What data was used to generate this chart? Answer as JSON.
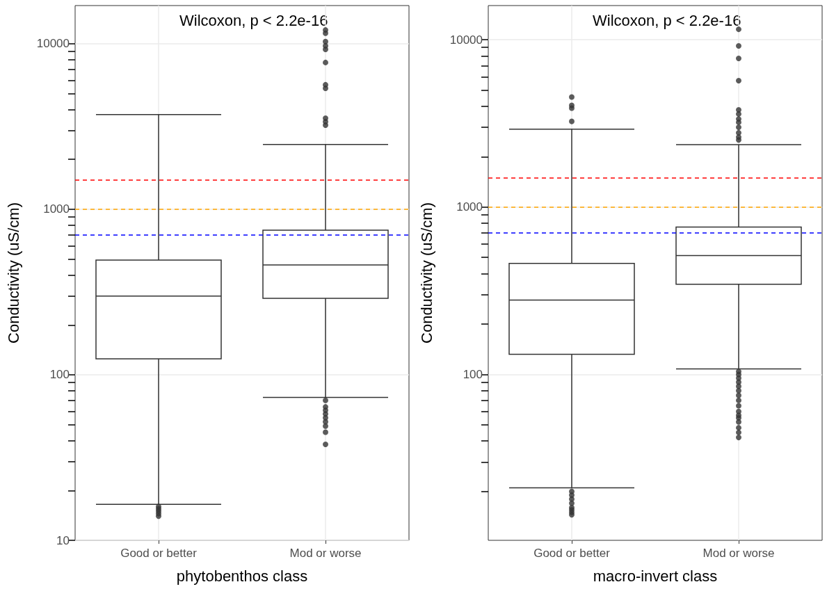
{
  "chart_data": [
    {
      "type": "box",
      "categories": [
        "Good or better",
        "Mod or worse"
      ],
      "xlabel": "phytobenthos class",
      "ylabel": "Conductivity (uS/cm)",
      "log": "y",
      "ylim": [
        10,
        17000
      ],
      "yticks": [
        10,
        {
          "value": 20,
          "label": null
        },
        {
          "value": 30,
          "label": null
        },
        {
          "value": 40,
          "label": null
        },
        {
          "value": 50,
          "label": null
        },
        {
          "value": 60,
          "label": null
        },
        {
          "value": 70,
          "label": null
        },
        {
          "value": 80,
          "label": null
        },
        {
          "value": 90,
          "label": null
        },
        100,
        {
          "value": 200,
          "label": null
        },
        {
          "value": 300,
          "label": null
        },
        {
          "value": 400,
          "label": null
        },
        {
          "value": 500,
          "label": null
        },
        {
          "value": 600,
          "label": null
        },
        {
          "value": 700,
          "label": null
        },
        {
          "value": 800,
          "label": null
        },
        {
          "value": 900,
          "label": null
        },
        1000,
        {
          "value": 2000,
          "label": null
        },
        {
          "value": 3000,
          "label": null
        },
        {
          "value": 4000,
          "label": null
        },
        {
          "value": 5000,
          "label": null
        },
        {
          "value": 6000,
          "label": null
        },
        {
          "value": 7000,
          "label": null
        },
        {
          "value": 8000,
          "label": null
        },
        {
          "value": 9000,
          "label": null
        },
        10000
      ],
      "grid": true,
      "boxes": [
        {
          "low": 16.5,
          "q1": 125,
          "median": 299,
          "q3": 493,
          "high": 3730,
          "outliers": [
            16,
            15.5,
            15,
            14.5,
            14
          ]
        },
        {
          "low": 73,
          "q1": 290,
          "median": 461,
          "q3": 748,
          "high": 2460,
          "outliers": [
            70,
            64,
            61,
            58,
            55,
            52,
            49,
            45,
            38,
            3220,
            3380,
            3550,
            5380,
            5650,
            7700,
            9250,
            9710,
            10300,
            11570,
            12100
          ]
        }
      ],
      "ref_lines": [
        {
          "axis": "y",
          "value": 1500,
          "color": "#ff0000",
          "line_style": "dashed"
        },
        {
          "axis": "y",
          "value": 1000,
          "color": "#ffa500",
          "line_style": "dashed"
        },
        {
          "axis": "y",
          "value": 700,
          "color": "#0000ff",
          "line_style": "dashed"
        }
      ],
      "annotations": [
        "Wilcoxon, p < 2.2e-16"
      ]
    },
    {
      "type": "box",
      "categories": [
        "Good or better",
        "Mod or worse"
      ],
      "xlabel": "macro-invert class",
      "ylabel": "Conductivity (uS/cm)",
      "log": "y",
      "ylim": [
        10.2,
        16000
      ],
      "yticks": [
        {
          "value": 20,
          "label": null
        },
        {
          "value": 30,
          "label": null
        },
        {
          "value": 40,
          "label": null
        },
        {
          "value": 50,
          "label": null
        },
        {
          "value": 60,
          "label": null
        },
        {
          "value": 70,
          "label": null
        },
        {
          "value": 80,
          "label": null
        },
        {
          "value": 90,
          "label": null
        },
        100,
        {
          "value": 200,
          "label": null
        },
        {
          "value": 300,
          "label": null
        },
        {
          "value": 400,
          "label": null
        },
        {
          "value": 500,
          "label": null
        },
        {
          "value": 600,
          "label": null
        },
        {
          "value": 700,
          "label": null
        },
        {
          "value": 800,
          "label": null
        },
        {
          "value": 900,
          "label": null
        },
        1000,
        {
          "value": 2000,
          "label": null
        },
        {
          "value": 3000,
          "label": null
        },
        {
          "value": 4000,
          "label": null
        },
        {
          "value": 5000,
          "label": null
        },
        {
          "value": 6000,
          "label": null
        },
        {
          "value": 7000,
          "label": null
        },
        {
          "value": 8000,
          "label": null
        },
        {
          "value": 9000,
          "label": null
        },
        10000
      ],
      "grid": true,
      "boxes": [
        {
          "low": 21,
          "q1": 132,
          "median": 278,
          "q3": 461,
          "high": 2920,
          "outliers": [
            20,
            19,
            18,
            17,
            16,
            15.5,
            15,
            14.5,
            3250,
            3900,
            4050,
            4550
          ]
        },
        {
          "low": 108,
          "q1": 346,
          "median": 513,
          "q3": 759,
          "high": 2360,
          "outliers": [
            104,
            100,
            95,
            90,
            85,
            80,
            75,
            70,
            65,
            60,
            57,
            55,
            52,
            48,
            45,
            42,
            2520,
            2620,
            2780,
            3000,
            3210,
            3360,
            3600,
            3810,
            5690,
            7730,
            9180,
            11540
          ]
        }
      ],
      "ref_lines": [
        {
          "axis": "y",
          "value": 1500,
          "color": "#ff0000",
          "line_style": "dashed"
        },
        {
          "axis": "y",
          "value": 1000,
          "color": "#ffa500",
          "line_style": "dashed"
        },
        {
          "axis": "y",
          "value": 700,
          "color": "#0000ff",
          "line_style": "dashed"
        }
      ],
      "annotations": [
        "Wilcoxon, p < 2.2e-16"
      ]
    }
  ]
}
